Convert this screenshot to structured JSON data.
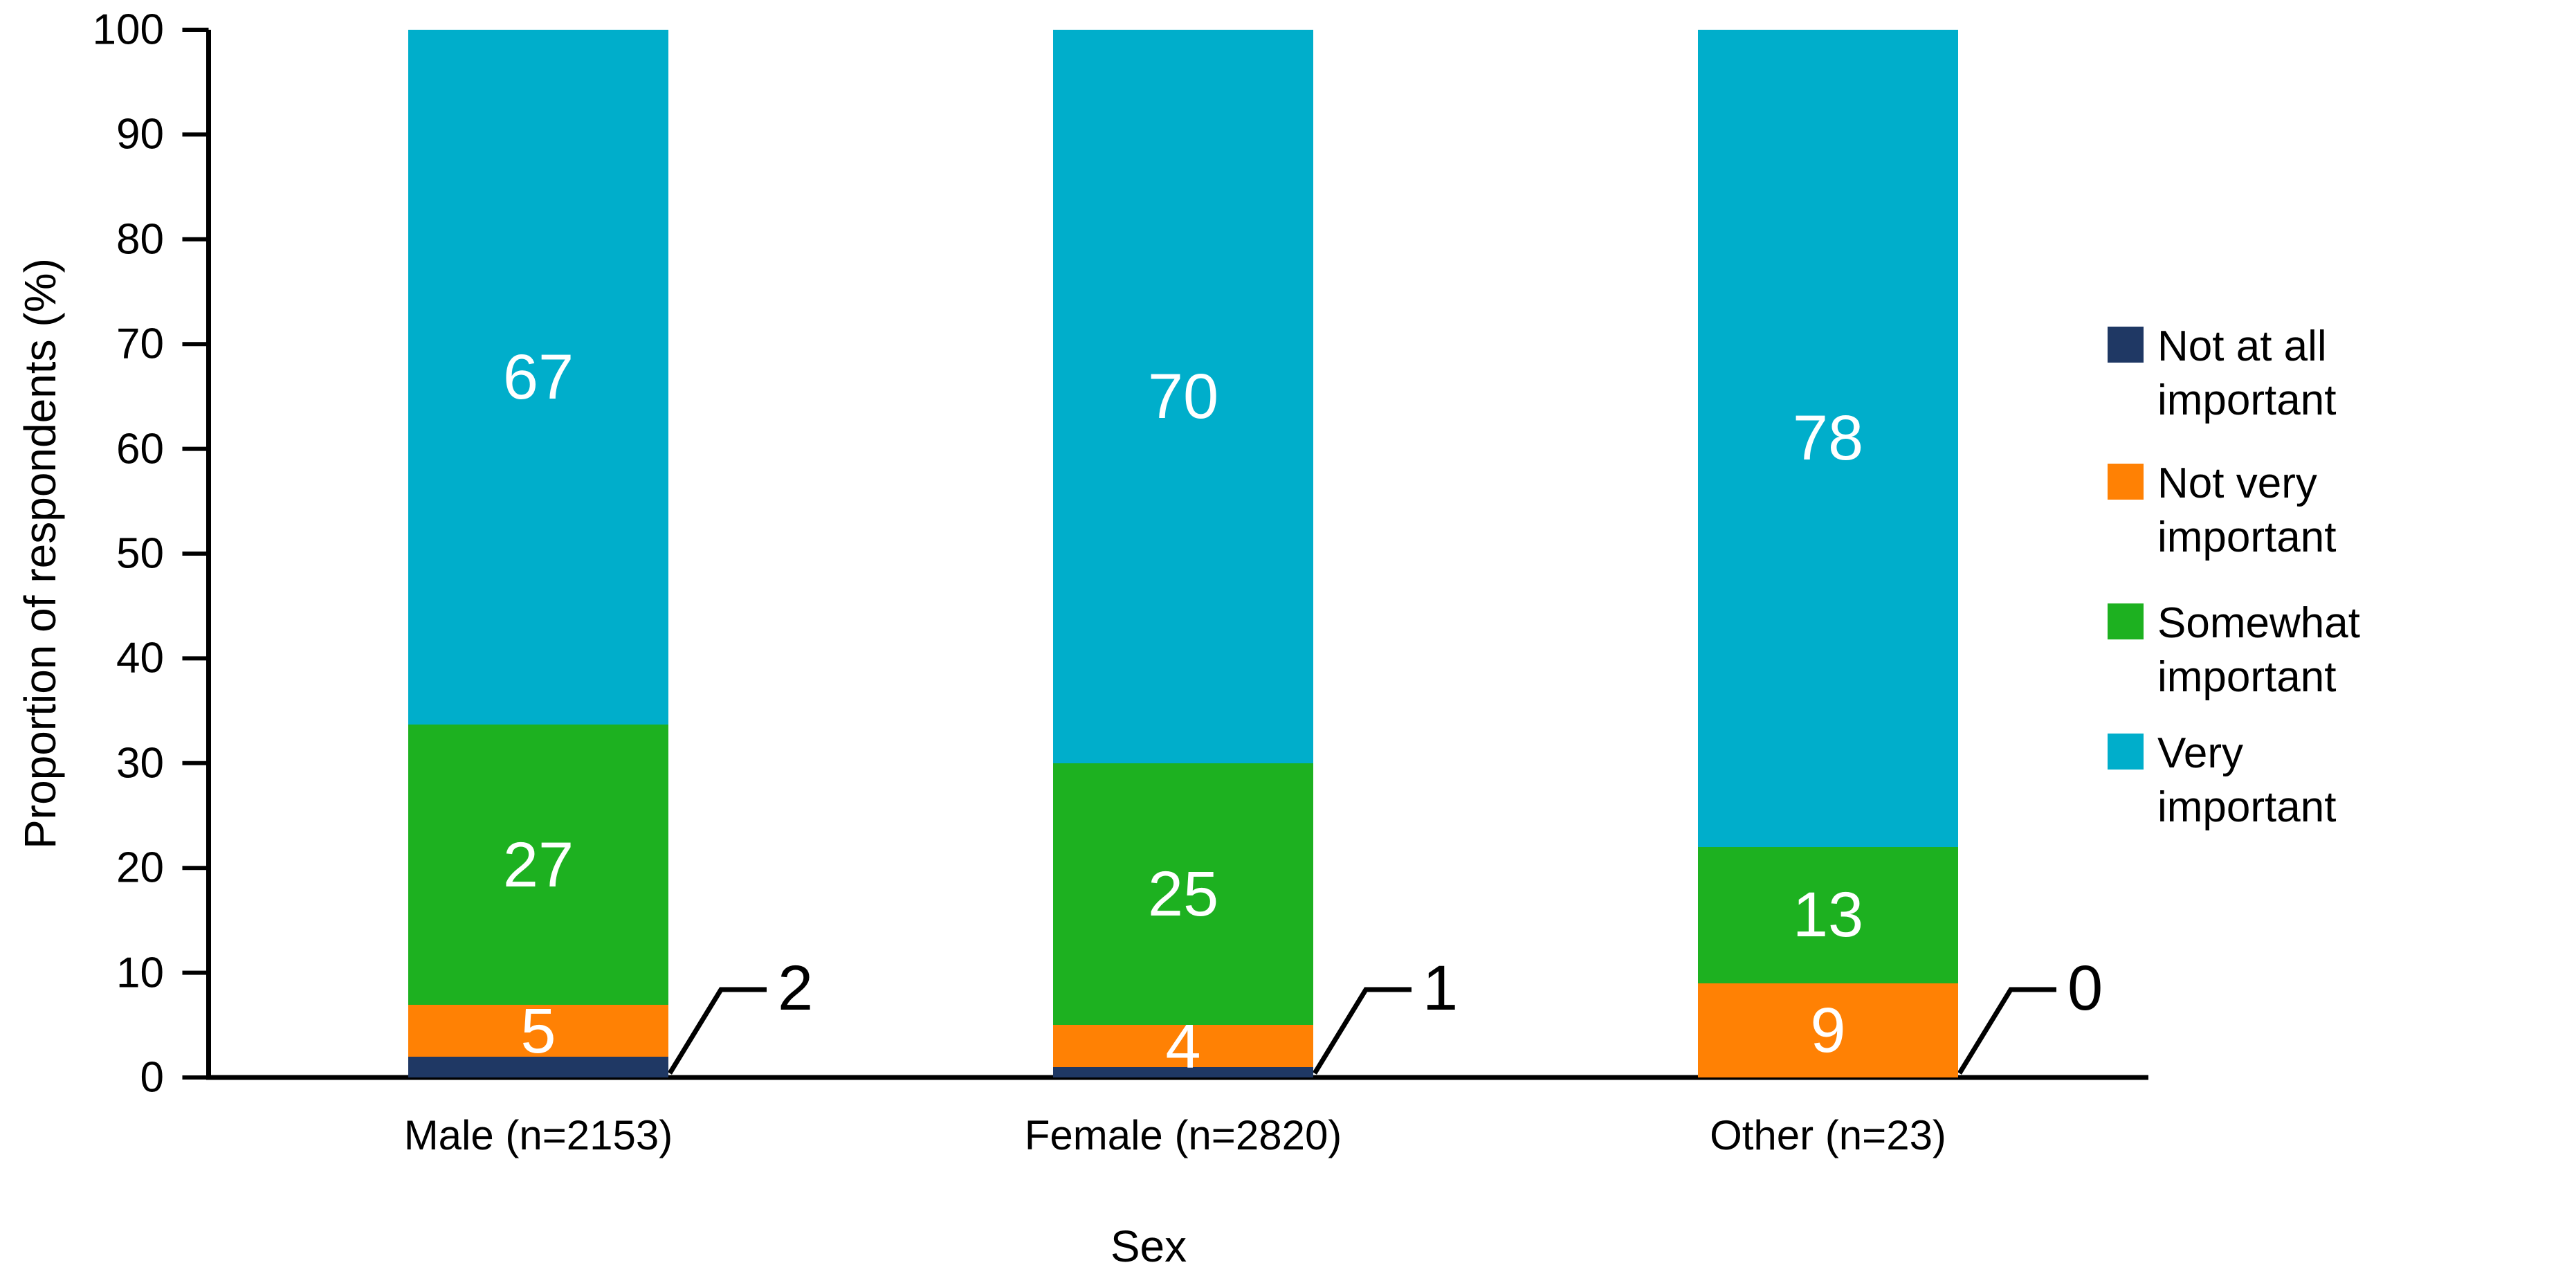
{
  "chart_data": {
    "type": "bar",
    "stacked": true,
    "title": "",
    "xlabel": "Sex",
    "ylabel": "Proportion of respondents (%)",
    "ylim": [
      0,
      100
    ],
    "y_ticks": [
      "0",
      "10",
      "20",
      "30",
      "40",
      "50",
      "60",
      "70",
      "80",
      "90",
      "100"
    ],
    "grid": false,
    "legend_position": "right",
    "categories": [
      "Male (n=2153)",
      "Female (n=2820)",
      "Other (n=23)"
    ],
    "series": [
      {
        "name": "Not at all important",
        "color": "#1F3864",
        "values": [
          2,
          1,
          0
        ],
        "label_placement": "callout"
      },
      {
        "name": "Not very important",
        "color": "#FF8104",
        "values": [
          5,
          4,
          9
        ],
        "label_placement": "inside"
      },
      {
        "name": "Somewhat important",
        "color": "#1DB120",
        "values": [
          27,
          25,
          13
        ],
        "label_placement": "inside"
      },
      {
        "name": "Very important",
        "color": "#00AECB",
        "values": [
          67,
          70,
          78
        ],
        "label_placement": "inside"
      }
    ],
    "value_label_color_inside": "#FFFFFF",
    "value_label_color_callout": "#000000",
    "axis_color": "#000000"
  },
  "legend": {
    "items": [
      {
        "label": "Not at all important",
        "color": "#1F3864"
      },
      {
        "label": "Not very important",
        "color": "#FF8104"
      },
      {
        "label": "Somewhat\nimportant",
        "color": "#1DB120"
      },
      {
        "label": "Very important",
        "color": "#00AECB"
      }
    ]
  }
}
